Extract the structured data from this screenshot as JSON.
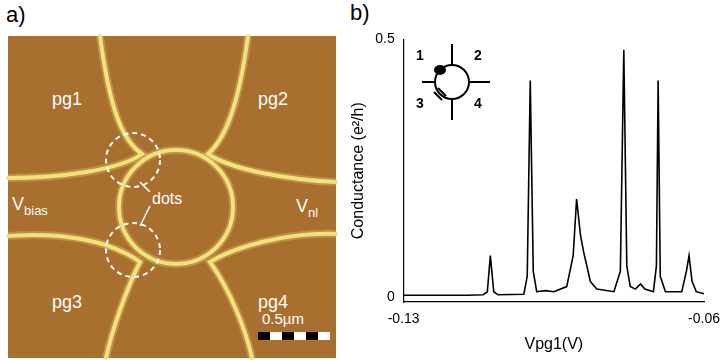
{
  "panel_a": {
    "label": "a)",
    "gates": [
      "pg1",
      "pg2",
      "pg3",
      "pg4"
    ],
    "v_bias": {
      "text": "V",
      "sub": "bias"
    },
    "v_nl": {
      "text": "V",
      "sub": "nl"
    },
    "dots": "dots",
    "scale_bar": "0.5µm"
  },
  "chart_data": {
    "panel_label": "b)",
    "type": "line",
    "x_label": "Vpg1(V)",
    "y_label": "Conductance (e²/h)",
    "inset_labels": [
      "1",
      "2",
      "3",
      "4"
    ],
    "x": [
      -0.13,
      -0.115,
      -0.1115,
      -0.1105,
      -0.1098,
      -0.109,
      -0.108,
      -0.102,
      -0.1012,
      -0.1005,
      -0.0998,
      -0.099,
      -0.097,
      -0.095,
      -0.092,
      -0.0905,
      -0.0897,
      -0.0888,
      -0.088,
      -0.0873,
      -0.0865,
      -0.085,
      -0.081,
      -0.0795,
      -0.0787,
      -0.078,
      -0.0772,
      -0.076,
      -0.0748,
      -0.0738,
      -0.0718,
      -0.0711,
      -0.0707,
      -0.0702,
      -0.069,
      -0.0652,
      -0.0641,
      -0.0635,
      -0.0628,
      -0.0618,
      -0.06
    ],
    "values": [
      0.003,
      0.003,
      0.004,
      0.01,
      0.08,
      0.01,
      0.004,
      0.005,
      0.04,
      0.42,
      0.05,
      0.01,
      0.012,
      0.01,
      0.02,
      0.08,
      0.19,
      0.12,
      0.085,
      0.06,
      0.03,
      0.015,
      0.01,
      0.05,
      0.48,
      0.06,
      0.02,
      0.015,
      0.025,
      0.015,
      0.01,
      0.06,
      0.42,
      0.04,
      0.01,
      0.01,
      0.05,
      0.08,
      0.03,
      0.01,
      0.006
    ],
    "color": "#000000",
    "xlim": [
      -0.13,
      -0.06
    ],
    "xticks": [
      -0.13,
      -0.06
    ],
    "ylim": [
      -0.01,
      0.5
    ],
    "yticks": [
      0,
      0.5
    ],
    "grid": false
  }
}
